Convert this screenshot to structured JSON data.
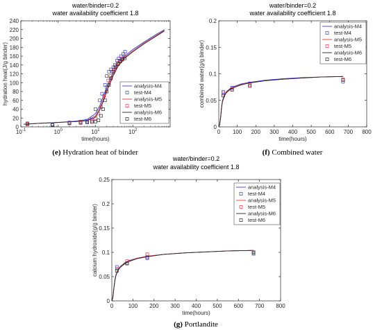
{
  "figures": [
    {
      "id": "e",
      "title_lines": [
        "water/binder=0.2",
        "water availability coefficient 1.8"
      ],
      "caption_label": "(e)",
      "caption_text": "Hydration heat of binder"
    },
    {
      "id": "f",
      "title_lines": [
        "water/binder=0.2",
        "water availability coefficient 1.8"
      ],
      "caption_label": "(f)",
      "caption_text": "Combined water"
    },
    {
      "id": "g",
      "title_lines": [
        "water/binder=0.2",
        "water availability coefficient 1.8"
      ],
      "caption_label": "(g)",
      "caption_text": "Portlandite"
    }
  ],
  "colors": {
    "M4": "#3b3bdb",
    "M5": "#e0383b",
    "M6": "#222222"
  },
  "chart_data": [
    {
      "type": "line",
      "xscale": "log",
      "xlabel": "time(hours)",
      "ylabel": "hydration heat(J/g binder)",
      "xlim": [
        0.1,
        1000
      ],
      "ylim": [
        0,
        240
      ],
      "x_ticks": [
        0.1,
        1,
        10,
        100
      ],
      "x_tick_labels": [
        "10",
        "10",
        "10",
        "10"
      ],
      "x_tick_exponents": [
        "-1",
        "0",
        "1",
        "2"
      ],
      "y_ticks": [
        0,
        20,
        40,
        60,
        80,
        100,
        120,
        140,
        160,
        180,
        200,
        220,
        240
      ],
      "y_tick_labels": [
        "0",
        "20",
        "40",
        "60",
        "80",
        "100",
        "120",
        "140",
        "160",
        "180",
        "200",
        "220",
        "240"
      ],
      "legend": {
        "position": "bottom-right",
        "entries": [
          "analysis-M4",
          "test-M4",
          "analysis-M5",
          "test-M5",
          "analysis-M6",
          "test-M6"
        ]
      },
      "series": [
        {
          "name": "analysis-M4",
          "kind": "line",
          "color_key": "M4",
          "x": [
            0.12,
            0.3,
            1,
            3,
            6,
            10,
            13,
            16,
            20,
            25,
            30,
            40,
            60,
            100,
            200,
            400,
            700
          ],
          "y": [
            6,
            8,
            10,
            13,
            17,
            30,
            48,
            68,
            90,
            110,
            125,
            145,
            160,
            175,
            192,
            208,
            220
          ]
        },
        {
          "name": "test-M4",
          "kind": "marker",
          "color_key": "M4",
          "x": [
            0.15,
            0.7,
            2,
            4,
            6,
            8,
            10,
            13,
            15,
            18,
            20,
            23,
            26,
            30,
            33,
            38,
            42,
            48,
            55,
            62
          ],
          "y": [
            8,
            6,
            10,
            12,
            14,
            17,
            40,
            60,
            75,
            95,
            115,
            125,
            130,
            135,
            140,
            150,
            155,
            160,
            165,
            170
          ]
        },
        {
          "name": "analysis-M5",
          "kind": "line",
          "color_key": "M5",
          "x": [
            0.12,
            0.3,
            1,
            3,
            6,
            10,
            13,
            16,
            20,
            25,
            30,
            40,
            60,
            100,
            200,
            400,
            700
          ],
          "y": [
            6,
            8,
            10,
            12,
            15,
            25,
            42,
            62,
            85,
            105,
            120,
            140,
            157,
            172,
            190,
            206,
            218
          ]
        },
        {
          "name": "test-M5",
          "kind": "marker",
          "color_key": "M5",
          "x": [
            0.15,
            0.7,
            2,
            4,
            6,
            8,
            10,
            12,
            14,
            17,
            20,
            22,
            25,
            28,
            32,
            36,
            40,
            46,
            52,
            60
          ],
          "y": [
            7,
            5,
            9,
            10,
            12,
            13,
            20,
            30,
            45,
            70,
            90,
            105,
            115,
            125,
            130,
            138,
            145,
            150,
            155,
            160
          ]
        },
        {
          "name": "analysis-M6",
          "kind": "line",
          "color_key": "M6",
          "x": [
            0.12,
            0.3,
            1,
            3,
            6,
            10,
            13,
            16,
            20,
            25,
            30,
            40,
            60,
            100,
            200,
            400,
            700
          ],
          "y": [
            6,
            8,
            10,
            12,
            14,
            22,
            38,
            57,
            80,
            100,
            116,
            137,
            155,
            170,
            188,
            204,
            217
          ]
        },
        {
          "name": "test-M6",
          "kind": "marker",
          "color_key": "M6",
          "x": [
            0.15,
            0.7,
            2,
            4,
            6,
            8,
            10,
            12,
            14,
            16,
            18,
            20,
            23,
            26,
            30,
            34,
            40,
            46,
            52,
            60
          ],
          "y": [
            6,
            4,
            8,
            9,
            10,
            11,
            12,
            15,
            25,
            40,
            60,
            80,
            95,
            110,
            125,
            135,
            142,
            148,
            152,
            155
          ]
        }
      ]
    },
    {
      "type": "line",
      "xscale": "linear",
      "xlabel": "time(hours)",
      "ylabel": "combined water(g/g binder)",
      "xlim": [
        0,
        800
      ],
      "ylim": [
        0,
        0.2
      ],
      "x_ticks": [
        0,
        100,
        200,
        300,
        400,
        500,
        600,
        700,
        800
      ],
      "x_tick_labels": [
        "0",
        "100",
        "200",
        "300",
        "400",
        "500",
        "600",
        "700",
        "800"
      ],
      "y_ticks": [
        0,
        0.05,
        0.1,
        0.15,
        0.2
      ],
      "y_tick_labels": [
        "0",
        "0.05",
        "0.1",
        "0.15",
        "0.2"
      ],
      "legend": {
        "position": "top-right",
        "entries": [
          "analysis-M4",
          "test-M4",
          "analysis-M5",
          "test-M5",
          "analysis-M6",
          "test-M6"
        ]
      },
      "series": [
        {
          "name": "analysis-M4",
          "kind": "line",
          "color_key": "M4",
          "x": [
            0,
            5,
            10,
            15,
            20,
            30,
            40,
            60,
            80,
            120,
            168,
            250,
            350,
            450,
            550,
            672
          ],
          "y": [
            0,
            0.005,
            0.02,
            0.038,
            0.05,
            0.06,
            0.066,
            0.072,
            0.076,
            0.081,
            0.084,
            0.088,
            0.091,
            0.093,
            0.094,
            0.095
          ]
        },
        {
          "name": "test-M4",
          "kind": "marker",
          "color_key": "M4",
          "x": [
            24,
            72,
            168,
            672
          ],
          "y": [
            0.066,
            0.074,
            0.082,
            0.085
          ]
        },
        {
          "name": "analysis-M5",
          "kind": "line",
          "color_key": "M5",
          "x": [
            0,
            5,
            10,
            15,
            20,
            30,
            40,
            60,
            80,
            120,
            168,
            250,
            350,
            450,
            550,
            672
          ],
          "y": [
            0,
            0.005,
            0.019,
            0.037,
            0.049,
            0.059,
            0.065,
            0.071,
            0.075,
            0.08,
            0.083,
            0.087,
            0.09,
            0.092,
            0.094,
            0.095
          ]
        },
        {
          "name": "test-M5",
          "kind": "marker",
          "color_key": "M5",
          "x": [
            24,
            72,
            168,
            672
          ],
          "y": [
            0.063,
            0.072,
            0.079,
            0.09
          ]
        },
        {
          "name": "analysis-M6",
          "kind": "line",
          "color_key": "M6",
          "x": [
            0,
            5,
            10,
            15,
            20,
            30,
            40,
            60,
            80,
            120,
            168,
            250,
            350,
            450,
            550,
            672
          ],
          "y": [
            0,
            0.004,
            0.017,
            0.035,
            0.047,
            0.058,
            0.064,
            0.07,
            0.074,
            0.079,
            0.083,
            0.087,
            0.09,
            0.092,
            0.094,
            0.095
          ]
        },
        {
          "name": "test-M6",
          "kind": "marker",
          "color_key": "M6",
          "x": [
            24,
            72,
            168,
            672
          ],
          "y": [
            0.059,
            0.07,
            0.077,
            0.088
          ]
        }
      ]
    },
    {
      "type": "line",
      "xscale": "linear",
      "xlabel": "time(hours)",
      "ylabel": "calcium hydroxide(g/g binder)",
      "xlim": [
        0,
        800
      ],
      "ylim": [
        0,
        0.25
      ],
      "x_ticks": [
        0,
        100,
        200,
        300,
        400,
        500,
        600,
        700,
        800
      ],
      "x_tick_labels": [
        "0",
        "100",
        "200",
        "300",
        "400",
        "500",
        "600",
        "700",
        "800"
      ],
      "y_ticks": [
        0,
        0.05,
        0.1,
        0.15,
        0.2,
        0.25
      ],
      "y_tick_labels": [
        "0",
        "0.05",
        "0.1",
        "0.15",
        "0.2",
        "0.25"
      ],
      "legend": {
        "position": "top-right",
        "entries": [
          "analysis-M4",
          "test-M4",
          "analysis-M5",
          "test-M5",
          "analysis-M6",
          "test-M6"
        ]
      },
      "series": [
        {
          "name": "analysis-M4",
          "kind": "line",
          "color_key": "M4",
          "x": [
            0,
            5,
            10,
            15,
            20,
            30,
            40,
            60,
            80,
            120,
            168,
            250,
            350,
            450,
            550,
            672
          ],
          "y": [
            0,
            0.008,
            0.028,
            0.045,
            0.055,
            0.065,
            0.071,
            0.078,
            0.083,
            0.088,
            0.092,
            0.096,
            0.099,
            0.101,
            0.103,
            0.104
          ]
        },
        {
          "name": "test-M4",
          "kind": "marker",
          "color_key": "M4",
          "x": [
            24,
            72,
            168,
            672
          ],
          "y": [
            0.07,
            0.078,
            0.088,
            0.097
          ]
        },
        {
          "name": "analysis-M5",
          "kind": "line",
          "color_key": "M5",
          "x": [
            0,
            5,
            10,
            15,
            20,
            30,
            40,
            60,
            80,
            120,
            168,
            250,
            350,
            450,
            550,
            672
          ],
          "y": [
            0,
            0.007,
            0.027,
            0.044,
            0.054,
            0.064,
            0.07,
            0.077,
            0.082,
            0.088,
            0.092,
            0.096,
            0.099,
            0.101,
            0.103,
            0.104
          ]
        },
        {
          "name": "test-M5",
          "kind": "marker",
          "color_key": "M5",
          "x": [
            24,
            72,
            168,
            672
          ],
          "y": [
            0.066,
            0.082,
            0.096,
            0.101
          ]
        },
        {
          "name": "analysis-M6",
          "kind": "line",
          "color_key": "M6",
          "x": [
            0,
            5,
            10,
            15,
            20,
            30,
            40,
            60,
            80,
            120,
            168,
            250,
            350,
            450,
            550,
            672
          ],
          "y": [
            0,
            0.006,
            0.026,
            0.043,
            0.053,
            0.063,
            0.069,
            0.076,
            0.081,
            0.087,
            0.091,
            0.096,
            0.099,
            0.101,
            0.103,
            0.104
          ]
        },
        {
          "name": "test-M6",
          "kind": "marker",
          "color_key": "M6",
          "x": [
            24,
            72,
            168,
            672
          ],
          "y": [
            0.062,
            0.077,
            0.09,
            0.099
          ]
        }
      ]
    }
  ]
}
